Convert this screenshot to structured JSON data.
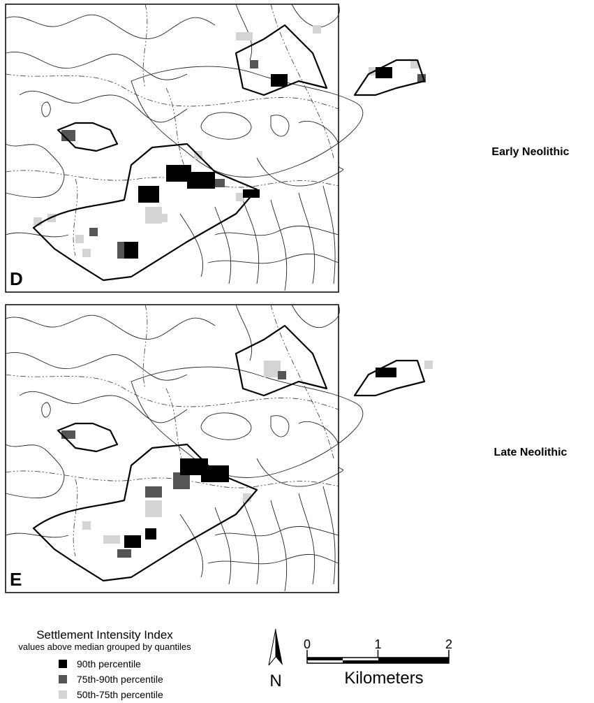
{
  "panels": [
    {
      "label": "D",
      "period": "Early Neolithic"
    },
    {
      "label": "E",
      "period": "Late Neolithic"
    }
  ],
  "legend": {
    "title": "Settlement Intensity Index",
    "subtitle": "values above median grouped by quantiles",
    "items": [
      {
        "label": "90th  percentile",
        "color": "#000000"
      },
      {
        "label": "75th-90th  percentile",
        "color": "#555555"
      },
      {
        "label": "50th-75th  percentile",
        "color": "#d4d4d4"
      }
    ]
  },
  "north": "N",
  "scale": {
    "ticks": [
      0,
      1,
      2
    ],
    "unit": "Kilometers"
  }
}
